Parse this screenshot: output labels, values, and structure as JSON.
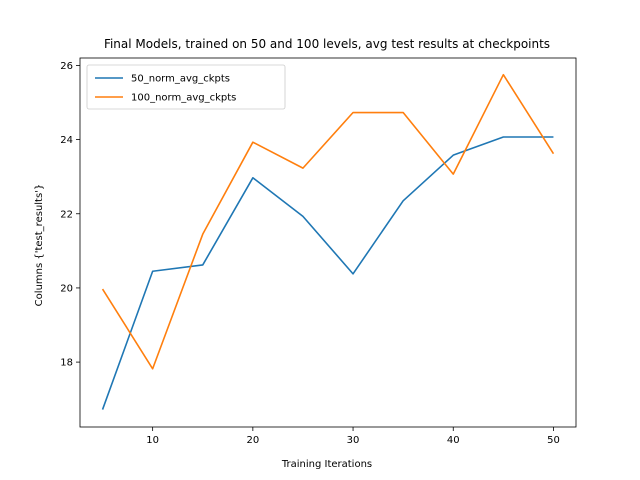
{
  "chart_data": {
    "type": "line",
    "title": "Final Models, trained on 50 and 100 levels, avg test results at checkpoints",
    "xlabel": "Training Iterations",
    "ylabel": "Columns {'test_results'}",
    "x": [
      5,
      10,
      15,
      20,
      25,
      30,
      35,
      40,
      45,
      50
    ],
    "xlim": [
      2.75,
      52.25
    ],
    "ylim": [
      16.25,
      26.2
    ],
    "xticks": [
      10,
      20,
      30,
      40,
      50
    ],
    "yticks": [
      18,
      20,
      22,
      24,
      26
    ],
    "grid": false,
    "legend_position": "top-left",
    "series": [
      {
        "name": "50_norm_avg_ckpts",
        "color": "#1f77b4",
        "values": [
          16.72,
          20.45,
          20.62,
          22.97,
          21.93,
          20.38,
          22.35,
          23.58,
          24.07,
          24.07
        ]
      },
      {
        "name": "100_norm_avg_ckpts",
        "color": "#ff7f0e",
        "values": [
          19.97,
          17.82,
          21.45,
          23.93,
          23.23,
          24.73,
          24.73,
          23.07,
          25.75,
          23.62
        ]
      }
    ]
  }
}
